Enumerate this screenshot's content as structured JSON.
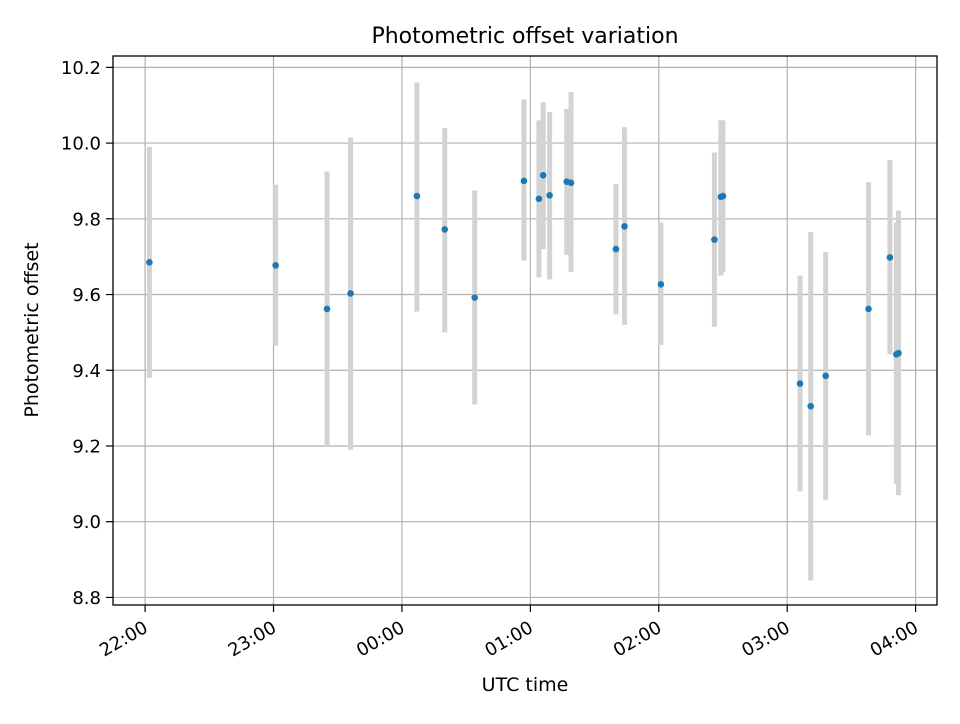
{
  "chart_data": {
    "type": "scatter",
    "title": "Photometric offset variation",
    "xlabel": "UTC time",
    "ylabel": "Photometric offset",
    "ylim": [
      8.78,
      10.23
    ],
    "xlim": [
      "21:45",
      "04:10"
    ],
    "x_ticks": [
      "22:00",
      "23:00",
      "00:00",
      "01:00",
      "02:00",
      "03:00",
      "04:00"
    ],
    "y_ticks": [
      "8.8",
      "9.0",
      "9.2",
      "9.4",
      "9.6",
      "9.8",
      "10.0",
      "10.2"
    ],
    "grid": true,
    "marker_color": "#1f77b4",
    "errorbar_color": "#d3d3d3",
    "points": [
      {
        "t": "22:02",
        "y": 9.685,
        "lo": 9.38,
        "hi": 9.99
      },
      {
        "t": "23:01",
        "y": 9.677,
        "lo": 9.465,
        "hi": 9.89
      },
      {
        "t": "23:25",
        "y": 9.562,
        "lo": 9.2,
        "hi": 9.925
      },
      {
        "t": "23:36",
        "y": 9.603,
        "lo": 9.19,
        "hi": 10.015
      },
      {
        "t": "00:07",
        "y": 9.86,
        "lo": 9.555,
        "hi": 10.16
      },
      {
        "t": "00:20",
        "y": 9.772,
        "lo": 9.5,
        "hi": 10.04
      },
      {
        "t": "00:34",
        "y": 9.592,
        "lo": 9.31,
        "hi": 9.875
      },
      {
        "t": "00:57",
        "y": 9.9,
        "lo": 9.69,
        "hi": 10.115
      },
      {
        "t": "01:04",
        "y": 9.853,
        "lo": 9.645,
        "hi": 10.06
      },
      {
        "t": "01:06",
        "y": 9.915,
        "lo": 9.72,
        "hi": 10.108
      },
      {
        "t": "01:09",
        "y": 9.862,
        "lo": 9.64,
        "hi": 10.082
      },
      {
        "t": "01:17",
        "y": 9.898,
        "lo": 9.705,
        "hi": 10.09
      },
      {
        "t": "01:19",
        "y": 9.895,
        "lo": 9.66,
        "hi": 10.135
      },
      {
        "t": "01:40",
        "y": 9.72,
        "lo": 9.548,
        "hi": 9.892
      },
      {
        "t": "01:44",
        "y": 9.78,
        "lo": 9.52,
        "hi": 10.042
      },
      {
        "t": "02:01",
        "y": 9.627,
        "lo": 9.467,
        "hi": 9.79
      },
      {
        "t": "02:26",
        "y": 9.745,
        "lo": 9.515,
        "hi": 9.975
      },
      {
        "t": "02:29",
        "y": 9.858,
        "lo": 9.65,
        "hi": 10.06
      },
      {
        "t": "02:30",
        "y": 9.86,
        "lo": 9.66,
        "hi": 10.06
      },
      {
        "t": "03:06",
        "y": 9.365,
        "lo": 9.08,
        "hi": 9.65
      },
      {
        "t": "03:11",
        "y": 9.305,
        "lo": 8.845,
        "hi": 9.765
      },
      {
        "t": "03:18",
        "y": 9.385,
        "lo": 9.058,
        "hi": 9.712
      },
      {
        "t": "03:38",
        "y": 9.562,
        "lo": 9.228,
        "hi": 9.897
      },
      {
        "t": "03:48",
        "y": 9.698,
        "lo": 9.442,
        "hi": 9.955
      },
      {
        "t": "03:51",
        "y": 9.442,
        "lo": 9.1,
        "hi": 9.79
      },
      {
        "t": "03:52",
        "y": 9.445,
        "lo": 9.07,
        "hi": 9.822
      }
    ]
  }
}
